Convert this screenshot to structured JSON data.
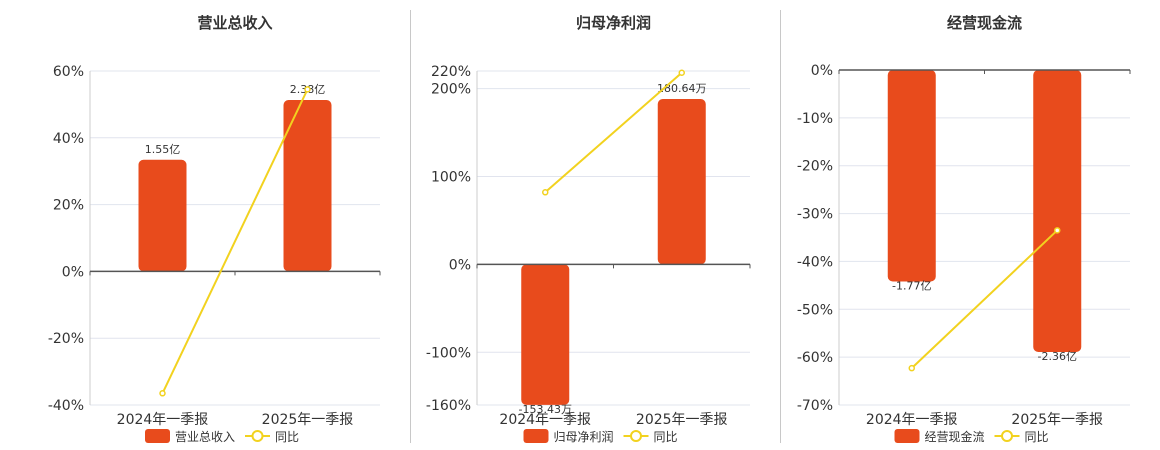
{
  "colors": {
    "bar": "#E84B1C",
    "line": "#F2D21F",
    "grid": "#e1e4ee",
    "axis": "#555555"
  },
  "legend": {
    "line_name": "同比"
  },
  "chart_data": [
    {
      "type": "bar",
      "title": "营业总收入",
      "categories": [
        "2024年一季报",
        "2025年一季报"
      ],
      "series": [
        {
          "name": "营业总收入",
          "type": "bar",
          "values": [
            1.55,
            2.38
          ],
          "labels": [
            "1.55亿",
            "2.38亿"
          ]
        },
        {
          "name": "同比",
          "type": "line",
          "values": [
            -36.5,
            54.5
          ]
        }
      ],
      "yaxis": {
        "ticks": [
          "60%",
          "40%",
          "20%",
          "0%",
          "-20%",
          "-40%"
        ],
        "min": -40,
        "max": 60
      }
    },
    {
      "type": "bar",
      "title": "归母净利润",
      "categories": [
        "2024年一季报",
        "2025年一季报"
      ],
      "series": [
        {
          "name": "归母净利润",
          "type": "bar",
          "values": [
            -153.43,
            180.64
          ],
          "labels": [
            "-153.43万",
            "180.64万"
          ]
        },
        {
          "name": "同比",
          "type": "line",
          "values": [
            82,
            218
          ]
        }
      ],
      "yaxis": {
        "ticks": [
          "220%",
          "200%",
          "100%",
          "0%",
          "-100%",
          "-160%"
        ],
        "min": -160,
        "max": 220
      }
    },
    {
      "type": "bar",
      "title": "经营现金流",
      "categories": [
        "2024年一季报",
        "2025年一季报"
      ],
      "series": [
        {
          "name": "经营现金流",
          "type": "bar",
          "values": [
            -1.77,
            -2.36
          ],
          "labels": [
            "-1.77亿",
            "-2.36亿"
          ]
        },
        {
          "name": "同比",
          "type": "line",
          "values": [
            -62.3,
            -33.5
          ]
        }
      ],
      "yaxis": {
        "ticks": [
          "0%",
          "-10%",
          "-20%",
          "-30%",
          "-40%",
          "-50%",
          "-60%",
          "-70%"
        ],
        "min": -70,
        "max": 0
      }
    }
  ]
}
